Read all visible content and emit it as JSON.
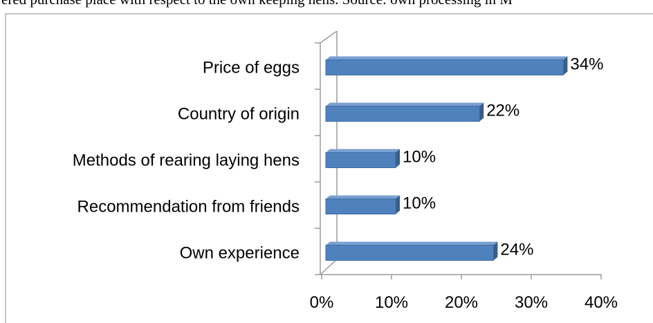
{
  "caption": "ered purchase place with respect to the own keeping hens. Source: own processing in M",
  "chart_data": {
    "type": "bar3d_horizontal",
    "categories": [
      "Price of eggs",
      "Country of origin",
      "Methods of rearing laying hens",
      "Recommendation from friends",
      "Own experience"
    ],
    "values": [
      34,
      22,
      10,
      10,
      24
    ],
    "value_labels": [
      "34%",
      "22%",
      "10%",
      "10%",
      "24%"
    ],
    "color": "#4f81bd",
    "xlim": [
      0,
      40
    ],
    "xticks": [
      {
        "value": 0,
        "label": "0%"
      },
      {
        "value": 10,
        "label": "10%"
      },
      {
        "value": 20,
        "label": "20%"
      },
      {
        "value": 30,
        "label": "30%"
      },
      {
        "value": 40,
        "label": "40%"
      }
    ]
  }
}
